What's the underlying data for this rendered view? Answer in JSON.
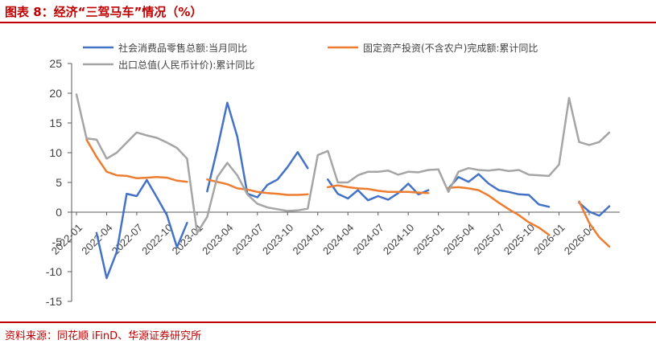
{
  "figure_title": "图表 8：经济“三驾马车”情况（%）",
  "source": "资料来源：同花顺 iFinD、华源证券研究所",
  "colors": {
    "retail": "#4472C4",
    "fai": "#ED7D31",
    "export": "#A5A5A5",
    "accent": "#C00000"
  },
  "chart_data": {
    "type": "line",
    "title": "",
    "xlabel": "",
    "ylabel": "",
    "ylim": [
      -15,
      25
    ],
    "yticks": [
      -15,
      -10,
      -5,
      0,
      5,
      10,
      15,
      20,
      25
    ],
    "xtick_labels": [
      "2022-01",
      "2022-04",
      "2022-07",
      "2022-10",
      "2023-01",
      "2023-04",
      "2023-07",
      "2023-10",
      "2024-01",
      "2024-04",
      "2024-07",
      "2024-10",
      "2025-01",
      "2025-04",
      "2025-07",
      "2025-10",
      "2026-01",
      "2026-04"
    ],
    "grid": false,
    "legend_position": "top",
    "x": [
      "2022-01",
      "2022-02",
      "2022-03",
      "2022-04",
      "2022-05",
      "2022-06",
      "2022-07",
      "2022-08",
      "2022-09",
      "2022-10",
      "2022-11",
      "2022-12",
      "2023-01",
      "2023-02",
      "2023-03",
      "2023-04",
      "2023-05",
      "2023-06",
      "2023-07",
      "2023-08",
      "2023-09",
      "2023-10",
      "2023-11",
      "2023-12",
      "2024-01",
      "2024-02",
      "2024-03",
      "2024-04",
      "2024-05",
      "2024-06",
      "2024-07",
      "2024-08",
      "2024-09",
      "2024-10",
      "2024-11",
      "2024-12",
      "2025-01",
      "2025-02",
      "2025-03",
      "2025-04",
      "2025-05",
      "2025-06",
      "2025-07",
      "2025-08",
      "2025-09",
      "2025-10",
      "2025-11",
      "2025-12",
      "2026-01",
      "2026-02",
      "2026-03",
      "2026-04",
      "2026-05",
      "2026-06"
    ],
    "series": [
      {
        "name": "社会消费品零售总额:当月同比",
        "color_key": "retail",
        "values": [
          null,
          null,
          -3.5,
          -11.1,
          -6.7,
          3.1,
          2.7,
          5.4,
          2.5,
          -0.5,
          -5.9,
          -1.8,
          null,
          3.5,
          10.6,
          18.4,
          12.7,
          3.1,
          2.5,
          4.6,
          5.5,
          7.6,
          10.1,
          7.4,
          null,
          5.5,
          3.1,
          2.3,
          3.7,
          2.0,
          2.7,
          2.1,
          3.2,
          4.8,
          3.0,
          3.7,
          null,
          4.0,
          5.9,
          5.1,
          6.4,
          4.8,
          3.7,
          3.4,
          3.0,
          2.9,
          1.3,
          0.9,
          null,
          null,
          1.6,
          0.1,
          -0.6,
          1.0
        ]
      },
      {
        "name": "固定资产投资(不含农户)完成额:累计同比",
        "color_key": "fai",
        "values": [
          null,
          12.2,
          9.3,
          6.8,
          6.2,
          6.1,
          5.7,
          5.8,
          5.9,
          5.8,
          5.3,
          5.1,
          null,
          5.5,
          5.1,
          4.7,
          4.0,
          3.8,
          3.4,
          3.2,
          3.1,
          2.9,
          2.9,
          3.0,
          null,
          4.2,
          4.5,
          4.2,
          4.0,
          3.9,
          3.6,
          3.4,
          3.4,
          3.4,
          3.3,
          3.2,
          null,
          4.1,
          4.2,
          4.0,
          3.7,
          2.8,
          1.6,
          0.5,
          -0.5,
          -1.7,
          -2.6,
          -3.8,
          null,
          null,
          1.8,
          -1.8,
          -4.2,
          -5.8
        ]
      },
      {
        "name": "出口总值(人民币计价):累计同比",
        "color_key": "export",
        "values": [
          19.8,
          12.4,
          12.2,
          9.0,
          10.0,
          11.7,
          13.4,
          12.9,
          12.5,
          11.7,
          10.8,
          9.0,
          -3.5,
          -0.8,
          5.9,
          8.3,
          6.2,
          3.0,
          1.4,
          0.8,
          0.5,
          0.2,
          0.3,
          0.6,
          9.6,
          10.3,
          5.0,
          5.0,
          6.2,
          6.8,
          6.8,
          7.0,
          6.3,
          6.8,
          6.7,
          7.1,
          7.2,
          3.4,
          6.8,
          7.4,
          7.1,
          7.0,
          7.2,
          6.9,
          7.1,
          6.3,
          6.2,
          6.1,
          8.0,
          19.2,
          11.8,
          11.3,
          11.8,
          13.4
        ]
      }
    ]
  }
}
